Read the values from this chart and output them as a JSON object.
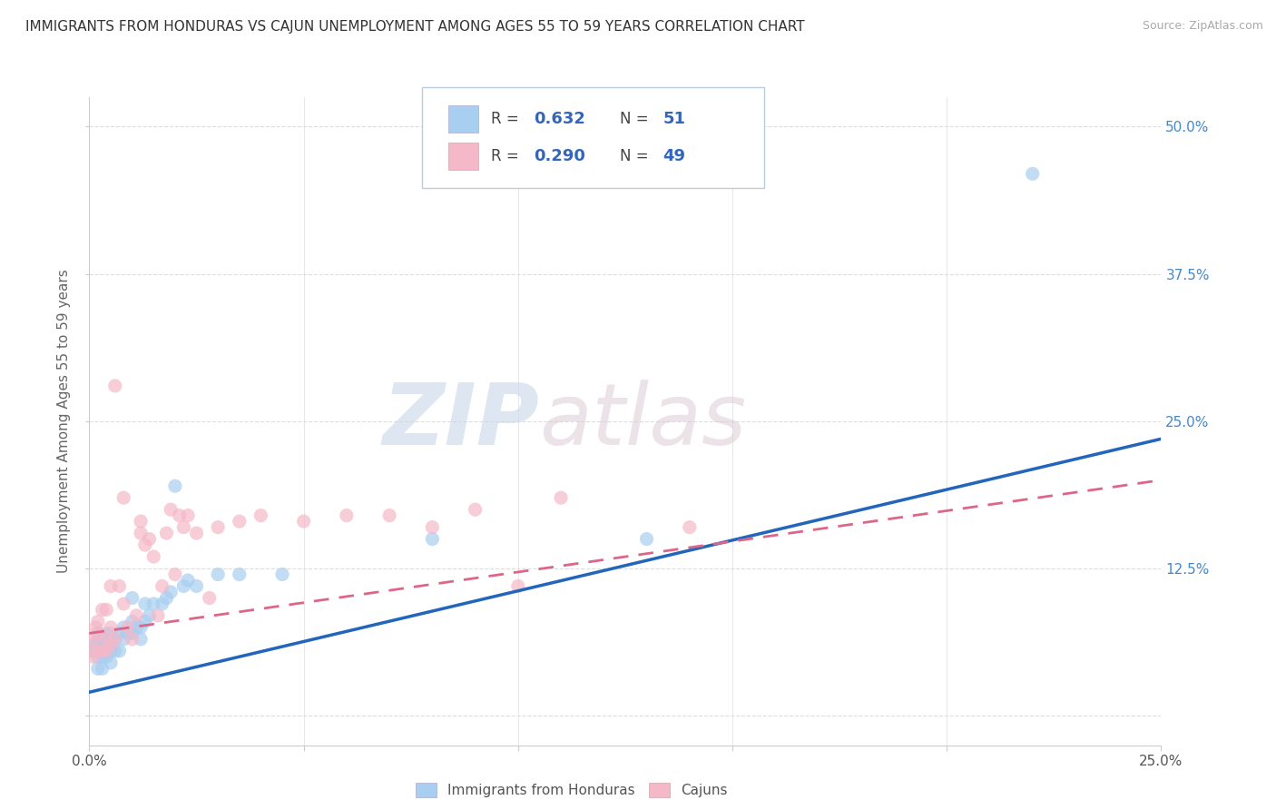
{
  "title": "IMMIGRANTS FROM HONDURAS VS CAJUN UNEMPLOYMENT AMONG AGES 55 TO 59 YEARS CORRELATION CHART",
  "source": "Source: ZipAtlas.com",
  "ylabel": "Unemployment Among Ages 55 to 59 years",
  "xlim": [
    0.0,
    0.25
  ],
  "ylim": [
    -0.025,
    0.525
  ],
  "yticks": [
    0.0,
    0.125,
    0.25,
    0.375,
    0.5
  ],
  "ytick_labels_right": [
    "",
    "12.5%",
    "25.0%",
    "37.5%",
    "50.0%"
  ],
  "xticks": [
    0.0,
    0.05,
    0.1,
    0.15,
    0.2,
    0.25
  ],
  "xtick_labels": [
    "0.0%",
    "",
    "",
    "",
    "",
    "25.0%"
  ],
  "legend_labels": [
    "Immigrants from Honduras",
    "Cajuns"
  ],
  "series1_color": "#a8cef0",
  "series2_color": "#f4b8c8",
  "line1_color": "#2266bb",
  "line2_color": "#dd6688",
  "R1": 0.632,
  "N1": 51,
  "R2": 0.29,
  "N2": 49,
  "background_color": "#ffffff",
  "grid_color": "#dddddd",
  "watermark_zip": "ZIP",
  "watermark_atlas": "atlas",
  "line1_x_start": 0.0,
  "line1_y_start": 0.02,
  "line1_x_end": 0.25,
  "line1_y_end": 0.235,
  "line2_x_start": 0.0,
  "line2_y_start": 0.07,
  "line2_x_end": 0.25,
  "line2_y_end": 0.2,
  "series1_x": [
    0.0005,
    0.001,
    0.001,
    0.0015,
    0.002,
    0.002,
    0.002,
    0.002,
    0.002,
    0.003,
    0.003,
    0.003,
    0.003,
    0.004,
    0.004,
    0.004,
    0.004,
    0.005,
    0.005,
    0.005,
    0.005,
    0.006,
    0.006,
    0.007,
    0.007,
    0.008,
    0.008,
    0.009,
    0.01,
    0.01,
    0.01,
    0.011,
    0.012,
    0.012,
    0.013,
    0.013,
    0.014,
    0.015,
    0.017,
    0.018,
    0.019,
    0.02,
    0.022,
    0.023,
    0.025,
    0.03,
    0.035,
    0.045,
    0.08,
    0.13,
    0.22
  ],
  "series1_y": [
    0.055,
    0.055,
    0.06,
    0.06,
    0.04,
    0.05,
    0.06,
    0.065,
    0.07,
    0.04,
    0.05,
    0.055,
    0.065,
    0.05,
    0.055,
    0.06,
    0.07,
    0.045,
    0.055,
    0.06,
    0.07,
    0.055,
    0.065,
    0.055,
    0.07,
    0.065,
    0.075,
    0.07,
    0.07,
    0.08,
    0.1,
    0.075,
    0.065,
    0.075,
    0.08,
    0.095,
    0.085,
    0.095,
    0.095,
    0.1,
    0.105,
    0.195,
    0.11,
    0.115,
    0.11,
    0.12,
    0.12,
    0.12,
    0.15,
    0.15,
    0.46
  ],
  "series2_x": [
    0.0005,
    0.001,
    0.001,
    0.0015,
    0.002,
    0.002,
    0.002,
    0.003,
    0.003,
    0.004,
    0.004,
    0.004,
    0.005,
    0.005,
    0.005,
    0.006,
    0.006,
    0.007,
    0.008,
    0.008,
    0.009,
    0.01,
    0.011,
    0.012,
    0.012,
    0.013,
    0.014,
    0.015,
    0.016,
    0.017,
    0.018,
    0.019,
    0.02,
    0.021,
    0.022,
    0.023,
    0.025,
    0.028,
    0.03,
    0.035,
    0.04,
    0.05,
    0.06,
    0.07,
    0.08,
    0.09,
    0.1,
    0.11,
    0.14
  ],
  "series2_y": [
    0.055,
    0.05,
    0.065,
    0.075,
    0.055,
    0.07,
    0.08,
    0.055,
    0.09,
    0.055,
    0.065,
    0.09,
    0.06,
    0.075,
    0.11,
    0.065,
    0.28,
    0.11,
    0.095,
    0.185,
    0.075,
    0.065,
    0.085,
    0.155,
    0.165,
    0.145,
    0.15,
    0.135,
    0.085,
    0.11,
    0.155,
    0.175,
    0.12,
    0.17,
    0.16,
    0.17,
    0.155,
    0.1,
    0.16,
    0.165,
    0.17,
    0.165,
    0.17,
    0.17,
    0.16,
    0.175,
    0.11,
    0.185,
    0.16
  ]
}
